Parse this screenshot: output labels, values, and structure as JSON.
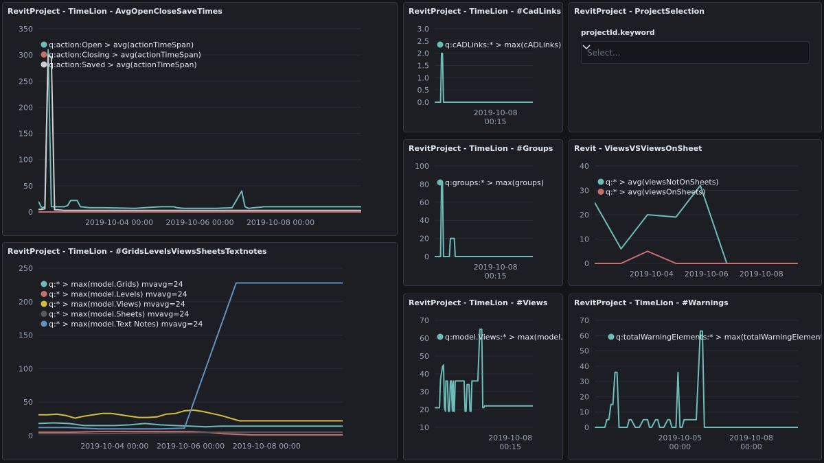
{
  "colors": {
    "teal": "#54b399",
    "tealLine": "#6dbcb7",
    "red": "#d36086",
    "redLine": "#c76d6d",
    "gray": "#cfcfcf",
    "yellow": "#d6bf3d",
    "darkgray": "#5a5a5a",
    "blue": "#6092c0"
  },
  "panels": {
    "avgOpen": {
      "title": "RevitProject - TimeLion - AvgOpenCloseSaveTimes"
    },
    "cadLinks": {
      "title": "RevitProject - TimeLion - #CadLinks"
    },
    "projectSelection": {
      "title": "RevitProject - ProjectSelection",
      "field_label": "projectId.keyword",
      "placeholder": "Select..."
    },
    "grids": {
      "title": "RevitProject - TimeLion - #GridsLevelsViewsSheetsTextnotes"
    },
    "groups": {
      "title": "RevitProject - TimeLion - #Groups"
    },
    "viewsVs": {
      "title": "Revit - ViewsVSViewsOnSheet"
    },
    "views": {
      "title": "RevitProject - TimeLion - #Views"
    },
    "warnings": {
      "title": "RevitProject - TimeLion - #Warnings"
    }
  },
  "chart_data": [
    {
      "id": "avgOpen",
      "type": "line",
      "yticks": [
        0,
        50,
        100,
        150,
        200,
        250,
        300,
        350
      ],
      "ylim": [
        0,
        350
      ],
      "xlim": [
        0,
        100
      ],
      "xticks": [
        {
          "x": 25,
          "label": "2019-10-04 00:00"
        },
        {
          "x": 50,
          "label": "2019-10-06 00:00"
        },
        {
          "x": 75,
          "label": "2019-10-08 00:00"
        }
      ],
      "series": [
        {
          "name": "q:action:Open > avg(actionTimeSpan)",
          "color": "#6dbcb7",
          "x": [
            0,
            1,
            2,
            3,
            4,
            6,
            8,
            9,
            10,
            11,
            12,
            13,
            16,
            20,
            30,
            35,
            38,
            40,
            42,
            43,
            45,
            50,
            55,
            60,
            63,
            64,
            65,
            70,
            100
          ],
          "y": [
            20,
            8,
            10,
            310,
            10,
            10,
            10,
            12,
            22,
            22,
            22,
            10,
            8,
            8,
            7,
            9,
            10,
            10,
            10,
            8,
            7,
            7,
            7,
            8,
            40,
            10,
            7,
            10,
            10
          ]
        },
        {
          "name": "q:action:Closing > avg(actionTimeSpan)",
          "color": "#c76d6d",
          "x": [
            0,
            100
          ],
          "y": [
            0,
            0
          ]
        },
        {
          "name": "q:action:Saved > avg(actionTimeSpan)",
          "color": "#cfcfcf",
          "x": [
            0,
            1,
            2,
            3,
            4,
            5,
            6,
            8,
            10,
            15,
            20,
            25,
            30,
            35,
            40,
            45,
            50,
            55,
            60,
            65,
            70,
            80,
            100
          ],
          "y": [
            5,
            5,
            6,
            300,
            295,
            4,
            4,
            3,
            3,
            3,
            3,
            3,
            3,
            3,
            3,
            3,
            3,
            3,
            3,
            3,
            3,
            3,
            3
          ]
        }
      ]
    },
    {
      "id": "cadLinks",
      "type": "line",
      "yticks": [
        0.0,
        0.5,
        1.0,
        1.5,
        2.0,
        2.5,
        3.0
      ],
      "ytick_labels": [
        "0.0",
        "0.5",
        "1.0",
        "1.5",
        "2.0",
        "2.5",
        "3.0"
      ],
      "ylim": [
        0,
        3
      ],
      "xlim": [
        0,
        100
      ],
      "xticks": [
        {
          "x": 62,
          "label": "2019-10-08",
          "label2": "00:15"
        }
      ],
      "series": [
        {
          "name": "q:cADLinks:* > max(cADLinks)",
          "color": "#6dbcb7",
          "x": [
            0,
            6,
            7,
            8,
            9,
            10,
            11,
            12,
            100
          ],
          "y": [
            0,
            0,
            2,
            2,
            0,
            0,
            0,
            0,
            0
          ]
        }
      ]
    },
    {
      "id": "groups",
      "type": "line",
      "yticks": [
        0,
        20,
        40,
        60,
        80,
        100
      ],
      "ylim": [
        0,
        100
      ],
      "xlim": [
        0,
        100
      ],
      "xticks": [
        {
          "x": 62,
          "label": "2019-10-08",
          "label2": "00:15"
        }
      ],
      "series": [
        {
          "name": "q:groups:* > max(groups)",
          "color": "#6dbcb7",
          "x": [
            0,
            6,
            7,
            8,
            9,
            10,
            11,
            12,
            15,
            16,
            20,
            21,
            23,
            24,
            100
          ],
          "y": [
            0,
            0,
            82,
            82,
            0,
            0,
            0,
            0,
            0,
            20,
            20,
            0,
            0,
            0,
            0
          ]
        }
      ]
    },
    {
      "id": "viewsVs",
      "type": "line",
      "yticks": [
        0,
        10,
        20,
        30,
        40
      ],
      "ylim": [
        0,
        40
      ],
      "xlim": [
        0,
        100
      ],
      "xticks": [
        {
          "x": 28,
          "label": "2019-10-04"
        },
        {
          "x": 55,
          "label": "2019-10-06"
        },
        {
          "x": 82,
          "label": "2019-10-08"
        }
      ],
      "series": [
        {
          "name": "q:* > avg(viewsNotOnSheets)",
          "color": "#6dbcb7",
          "x": [
            0,
            13,
            26,
            40,
            52,
            65,
            100
          ],
          "y": [
            25,
            6,
            20,
            19,
            32,
            0,
            0
          ]
        },
        {
          "name": "q:* > avg(viewsOnSheets)",
          "color": "#c76d6d",
          "x": [
            0,
            13,
            26,
            40,
            52,
            65,
            100
          ],
          "y": [
            0,
            0,
            5,
            0,
            0,
            0,
            0
          ]
        }
      ]
    },
    {
      "id": "grids",
      "type": "line",
      "yticks": [
        0,
        50,
        100,
        150,
        200,
        250
      ],
      "ylim": [
        0,
        250
      ],
      "xlim": [
        0,
        100
      ],
      "xticks": [
        {
          "x": 25,
          "label": "2019-10-04 00:00"
        },
        {
          "x": 50,
          "label": "2019-10-06 00:00"
        },
        {
          "x": 75,
          "label": "2019-10-08 00:00"
        }
      ],
      "series": [
        {
          "name": "q:* > max(model.Grids) mvavg=24",
          "color": "#6dbcb7",
          "x": [
            0,
            5,
            10,
            15,
            20,
            25,
            30,
            35,
            40,
            45,
            50,
            55,
            60,
            70,
            80,
            100
          ],
          "y": [
            18,
            19,
            18,
            15,
            15,
            15,
            16,
            18,
            16,
            15,
            14,
            13,
            14,
            14,
            14,
            14
          ]
        },
        {
          "name": "q:* > max(model.Levels) mvavg=24",
          "color": "#c76d6d",
          "x": [
            0,
            10,
            20,
            30,
            40,
            50,
            55,
            60,
            65,
            70,
            100
          ],
          "y": [
            5,
            5,
            6,
            6,
            6,
            6,
            5,
            3,
            2,
            1,
            1
          ]
        },
        {
          "name": "q:* > max(model.Views) mvavg=24",
          "color": "#d6bf3d",
          "x": [
            0,
            3,
            6,
            9,
            12,
            15,
            18,
            21,
            24,
            27,
            30,
            33,
            36,
            39,
            42,
            45,
            48,
            51,
            54,
            57,
            60,
            63,
            66,
            70,
            80,
            100
          ],
          "y": [
            31,
            31,
            32,
            30,
            26,
            29,
            31,
            33,
            33,
            31,
            29,
            27,
            27,
            28,
            32,
            33,
            37,
            38,
            36,
            33,
            30,
            26,
            22,
            22,
            22,
            22
          ]
        },
        {
          "name": "q:* > max(model.Sheets) mvavg=24",
          "color": "#5a5a5a",
          "x": [
            0,
            20,
            40,
            60,
            80,
            100
          ],
          "y": [
            3,
            3,
            4,
            5,
            5,
            5
          ]
        },
        {
          "name": "q:* > max(model.Text Notes) mvavg=24",
          "color": "#6092c0",
          "x": [
            0,
            10,
            20,
            30,
            40,
            48,
            65,
            75,
            100
          ],
          "y": [
            12,
            12,
            10,
            10,
            10,
            11,
            228,
            228,
            228
          ]
        }
      ]
    },
    {
      "id": "views",
      "type": "line",
      "yticks": [
        10,
        20,
        30,
        40,
        50,
        60,
        70
      ],
      "ylim": [
        10,
        70
      ],
      "xlim": [
        0,
        100
      ],
      "xticks": [
        {
          "x": 77,
          "label": "2019-10-08",
          "label2": "00:15"
        }
      ],
      "series": [
        {
          "name": "q:model.Views:* > max(model.Views)",
          "color": "#6dbcb7",
          "x": [
            0,
            5,
            5.5,
            6,
            8,
            9,
            10,
            11,
            11.5,
            13,
            14,
            15,
            16,
            17,
            18,
            18.5,
            19,
            19.5,
            20,
            21,
            22,
            23,
            24,
            26,
            28,
            30,
            31,
            32,
            33,
            35,
            36,
            37,
            38,
            40,
            41,
            42,
            43,
            44,
            46,
            48,
            49,
            50,
            51,
            52,
            53,
            54,
            56,
            60,
            70,
            80,
            100
          ],
          "y": [
            21,
            21,
            31,
            37,
            44,
            45,
            21,
            19,
            36,
            36,
            19,
            19,
            36,
            36,
            19,
            34,
            36,
            19,
            19,
            36,
            36,
            36,
            36,
            36,
            36,
            36,
            19,
            19,
            34,
            34,
            19,
            19,
            36,
            36,
            36,
            36,
            36,
            36,
            65,
            65,
            21,
            21,
            22,
            22,
            22,
            22,
            22,
            22,
            22,
            22,
            22
          ]
        }
      ]
    },
    {
      "id": "warnings",
      "type": "line",
      "yticks": [
        0,
        10,
        20,
        30,
        40,
        50,
        60,
        70
      ],
      "ylim": [
        0,
        70
      ],
      "xlim": [
        0,
        100
      ],
      "xticks": [
        {
          "x": 42,
          "label": "2019-10-05",
          "label2": "00:00"
        },
        {
          "x": 77,
          "label": "2019-10-08",
          "label2": "00:00"
        }
      ],
      "series": [
        {
          "name": "q:totalWarningElements:* > max(totalWarningElements)",
          "color": "#6dbcb7",
          "x": [
            0,
            5,
            6,
            7,
            8,
            9,
            10,
            11,
            12,
            13,
            14,
            16,
            17,
            18,
            20,
            21,
            22,
            24,
            26,
            27,
            28,
            30,
            31,
            32,
            34,
            36,
            37,
            38,
            40,
            41,
            42,
            43,
            44,
            46,
            48,
            50,
            52,
            53,
            54,
            55,
            56,
            58,
            60,
            70,
            80,
            100
          ],
          "y": [
            0,
            0,
            5,
            5,
            15,
            15,
            36,
            36,
            0,
            0,
            0,
            0,
            5,
            5,
            0,
            0,
            0,
            5,
            5,
            0,
            0,
            5,
            5,
            0,
            0,
            5,
            5,
            0,
            0,
            36,
            0,
            0,
            5,
            5,
            5,
            5,
            63,
            63,
            0,
            0,
            0,
            0,
            0,
            0,
            0,
            0
          ]
        }
      ]
    }
  ]
}
